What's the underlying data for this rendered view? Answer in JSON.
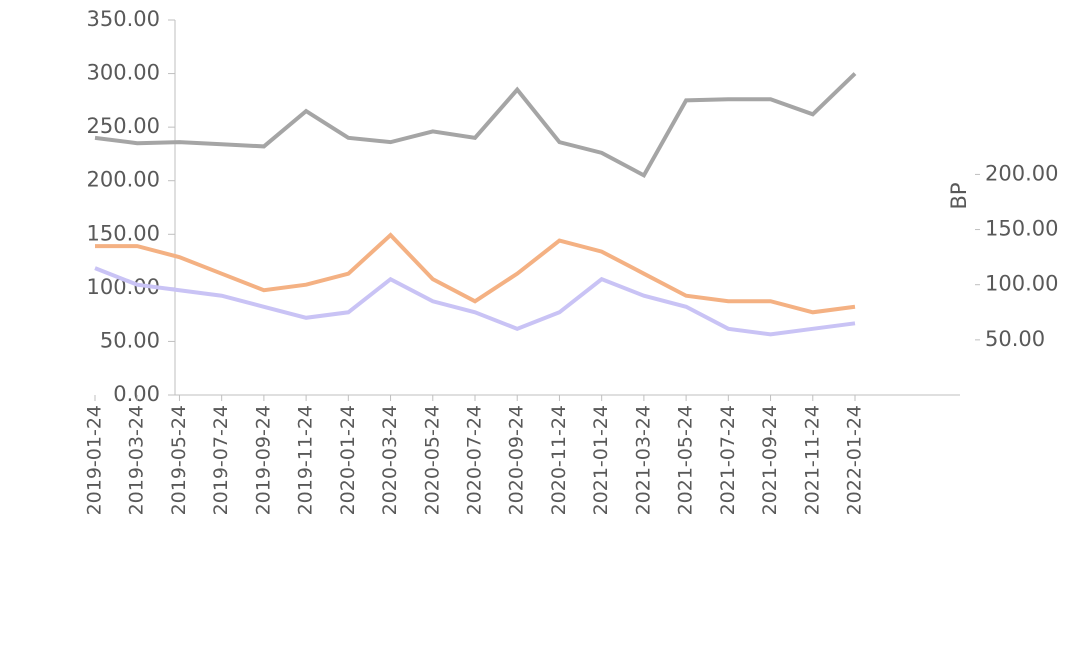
{
  "chart_data": {
    "type": "line",
    "y2label": "BP",
    "categories": [
      "2019-01-24",
      "2019-03-24",
      "2019-05-24",
      "2019-07-24",
      "2019-09-24",
      "2019-11-24",
      "2020-01-24",
      "2020-03-24",
      "2020-05-24",
      "2020-07-24",
      "2020-09-24",
      "2020-11-24",
      "2021-01-24",
      "2021-03-24",
      "2021-05-24",
      "2021-07-24",
      "2021-09-24",
      "2021-11-24",
      "2022-01-24"
    ],
    "series": [
      {
        "color": "#a5a5a5",
        "values": [
          240,
          235,
          236,
          234,
          232,
          265,
          240,
          236,
          246,
          240,
          285,
          236,
          226,
          205,
          275,
          276,
          276,
          262,
          300
        ]
      },
      {
        "color": "#f4b183",
        "axis": "y2",
        "values": [
          135,
          135,
          125,
          110,
          95,
          100,
          110,
          145,
          105,
          85,
          110,
          140,
          130,
          110,
          90,
          85,
          85,
          75,
          80
        ]
      },
      {
        "color": "#c9c3f5",
        "axis": "y2",
        "values": [
          115,
          100,
          95,
          90,
          80,
          70,
          75,
          105,
          85,
          75,
          60,
          75,
          105,
          90,
          80,
          60,
          55,
          60,
          65
        ]
      }
    ],
    "ylim": [
      0,
      350
    ],
    "yticks": [
      {
        "value": 0,
        "label": "0.00"
      },
      {
        "value": 50,
        "label": "50.00"
      },
      {
        "value": 100,
        "label": "100.00"
      },
      {
        "value": 150,
        "label": "150.00"
      },
      {
        "value": 200,
        "label": "200.00"
      },
      {
        "value": 250,
        "label": "250.00"
      },
      {
        "value": 300,
        "label": "300.00"
      },
      {
        "value": 350,
        "label": "350.00"
      }
    ],
    "y2lim": [
      0,
      340
    ],
    "y2ticks": [
      {
        "value": 50,
        "label": "50.00"
      },
      {
        "value": 100,
        "label": "100.00"
      },
      {
        "value": 150,
        "label": "150.00"
      },
      {
        "value": 200,
        "label": "200.00"
      }
    ]
  }
}
